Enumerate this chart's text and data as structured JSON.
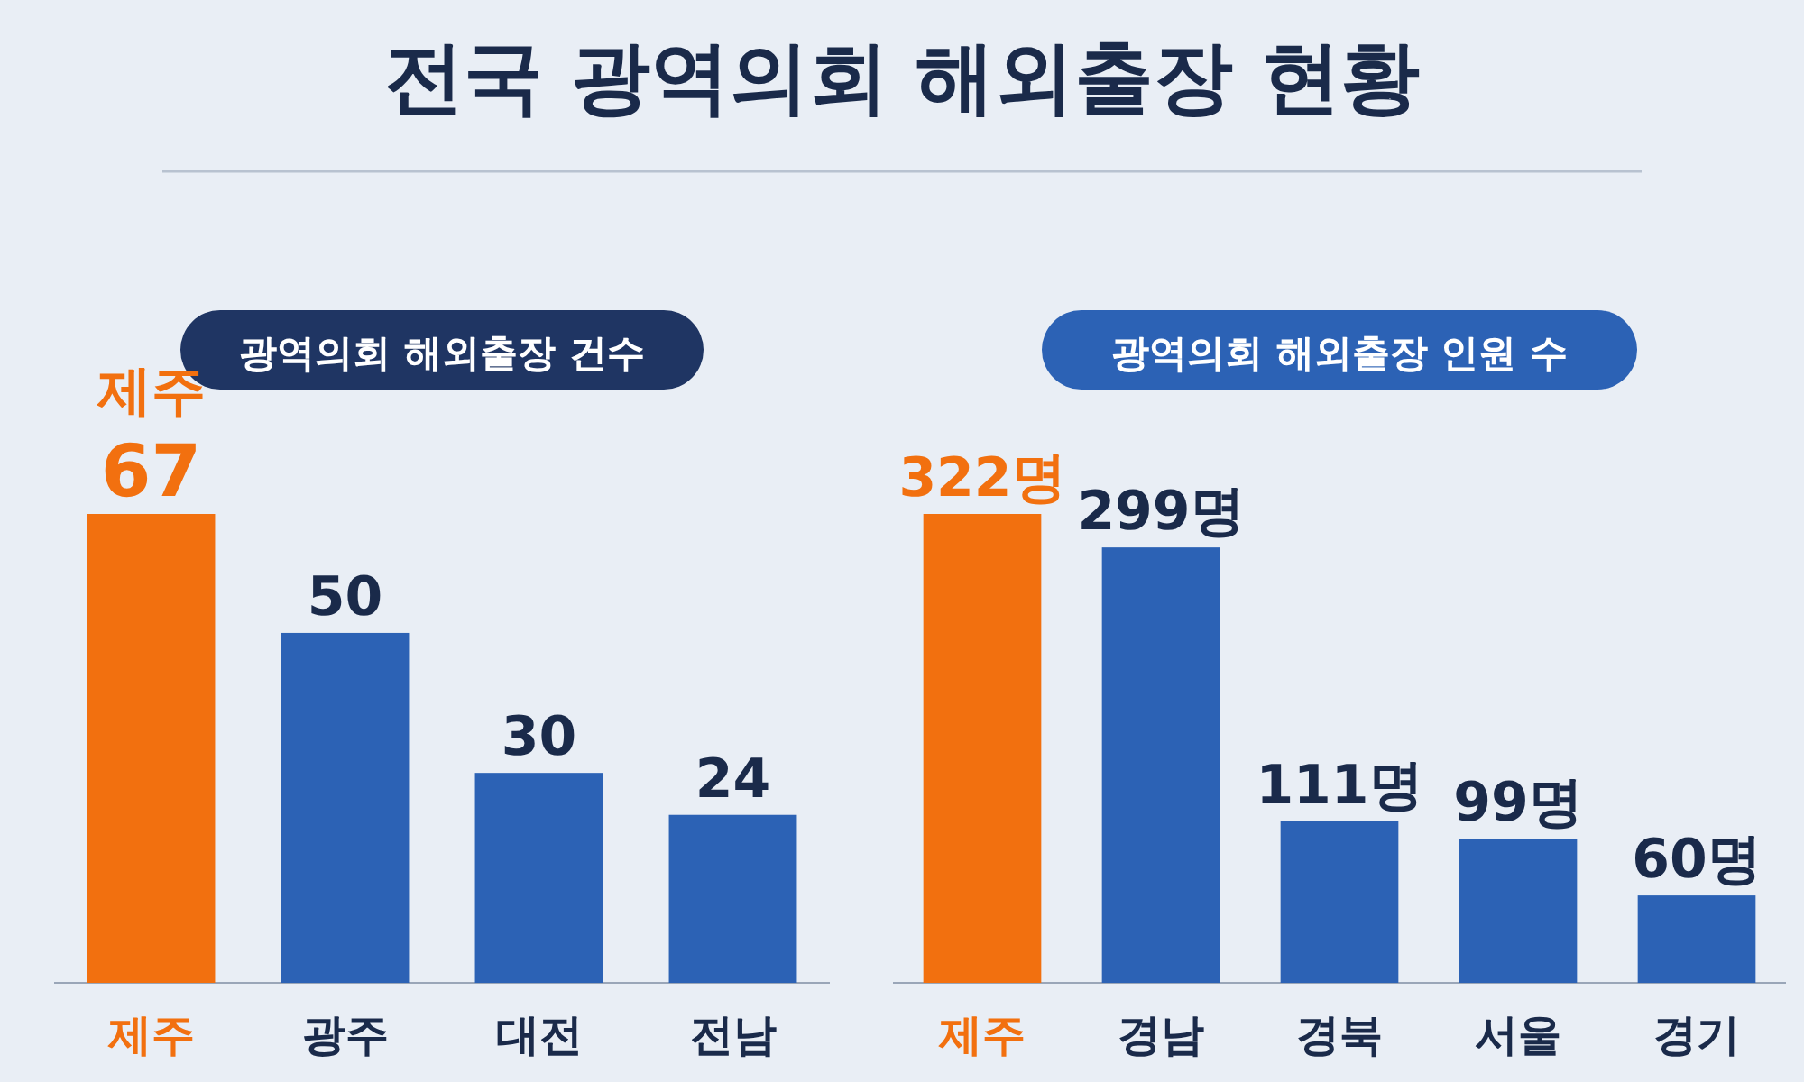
{
  "chart_data": [
    {
      "type": "other",
      "title": "전국 광역의회 해외출장 현황"
    },
    {
      "type": "bar",
      "title": "광역의회 해외출장 건수",
      "categories": [
        "제주",
        "광주",
        "대전",
        "전남"
      ],
      "values": [
        67,
        50,
        30,
        24
      ],
      "colors": [
        "#f2700f",
        "#2c62b5",
        "#2c62b5",
        "#2c62b5"
      ],
      "data_labels": true,
      "annotations": [
        {
          "text": "제주",
          "x": "제주",
          "y": 67
        }
      ]
    },
    {
      "type": "bar",
      "title": "광역의회 해외출장 인원 수",
      "categories": [
        "제주",
        "경남",
        "경북",
        "서울",
        "경기"
      ],
      "values": [
        322,
        299,
        111,
        99,
        60
      ],
      "colors": [
        "#f2700f",
        "#2c62b5",
        "#2c62b5",
        "#2c62b5",
        "#2c62b5"
      ],
      "value_labels": [
        "322명",
        "299명",
        "111명",
        "99명",
        "60명"
      ]
    }
  ]
}
